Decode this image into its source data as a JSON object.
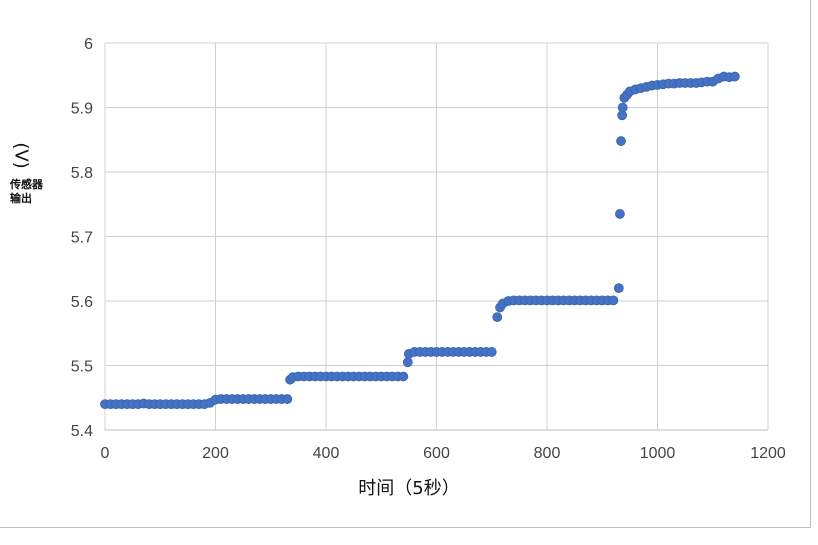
{
  "chart_data": {
    "type": "scatter",
    "title": "",
    "xlabel": "时间（5秒）",
    "ylabel": "传感器输出",
    "ylabel_unit": "(V)",
    "xlim": [
      0,
      1200
    ],
    "ylim": [
      5.4,
      6.0
    ],
    "x_ticks": [
      "0",
      "200",
      "400",
      "600",
      "800",
      "1000",
      "1200"
    ],
    "y_ticks": [
      "5.4",
      "5.5",
      "5.6",
      "5.7",
      "5.8",
      "5.9",
      "6"
    ],
    "grid": true,
    "legend": "none",
    "marker_color": "#4472C4",
    "x": [
      0,
      10,
      20,
      30,
      40,
      50,
      60,
      70,
      80,
      90,
      100,
      110,
      120,
      130,
      140,
      150,
      160,
      170,
      180,
      190,
      200,
      210,
      220,
      230,
      240,
      250,
      260,
      270,
      280,
      290,
      300,
      310,
      320,
      330,
      335,
      340,
      350,
      360,
      370,
      380,
      390,
      400,
      410,
      420,
      430,
      440,
      450,
      460,
      470,
      480,
      490,
      500,
      510,
      520,
      530,
      540,
      548,
      550,
      560,
      570,
      580,
      590,
      600,
      610,
      620,
      630,
      640,
      650,
      660,
      670,
      680,
      690,
      700,
      710,
      715,
      720,
      730,
      740,
      750,
      760,
      770,
      780,
      790,
      800,
      810,
      820,
      830,
      840,
      850,
      860,
      870,
      880,
      890,
      900,
      910,
      920,
      930,
      932,
      934,
      936,
      937,
      940,
      945,
      950,
      960,
      970,
      980,
      990,
      1000,
      1010,
      1020,
      1030,
      1040,
      1050,
      1060,
      1070,
      1080,
      1090,
      1100,
      1110,
      1120,
      1130,
      1140
    ],
    "y": [
      5.44,
      5.44,
      5.44,
      5.44,
      5.44,
      5.44,
      5.44,
      5.441,
      5.44,
      5.44,
      5.44,
      5.44,
      5.44,
      5.44,
      5.44,
      5.44,
      5.44,
      5.44,
      5.44,
      5.442,
      5.447,
      5.448,
      5.448,
      5.448,
      5.448,
      5.448,
      5.448,
      5.448,
      5.448,
      5.448,
      5.448,
      5.448,
      5.448,
      5.448,
      5.478,
      5.482,
      5.483,
      5.483,
      5.483,
      5.483,
      5.483,
      5.483,
      5.483,
      5.483,
      5.483,
      5.483,
      5.483,
      5.483,
      5.483,
      5.483,
      5.483,
      5.483,
      5.483,
      5.483,
      5.483,
      5.483,
      5.505,
      5.518,
      5.521,
      5.521,
      5.521,
      5.521,
      5.521,
      5.521,
      5.521,
      5.521,
      5.521,
      5.521,
      5.521,
      5.521,
      5.521,
      5.521,
      5.521,
      5.575,
      5.59,
      5.596,
      5.6,
      5.601,
      5.601,
      5.601,
      5.601,
      5.601,
      5.601,
      5.601,
      5.601,
      5.601,
      5.601,
      5.601,
      5.601,
      5.601,
      5.601,
      5.601,
      5.601,
      5.601,
      5.601,
      5.601,
      5.62,
      5.735,
      5.848,
      5.888,
      5.9,
      5.915,
      5.92,
      5.925,
      5.928,
      5.93,
      5.932,
      5.934,
      5.935,
      5.936,
      5.937,
      5.937,
      5.938,
      5.938,
      5.938,
      5.938,
      5.939,
      5.94,
      5.94,
      5.945,
      5.948,
      5.947,
      5.948
    ]
  }
}
